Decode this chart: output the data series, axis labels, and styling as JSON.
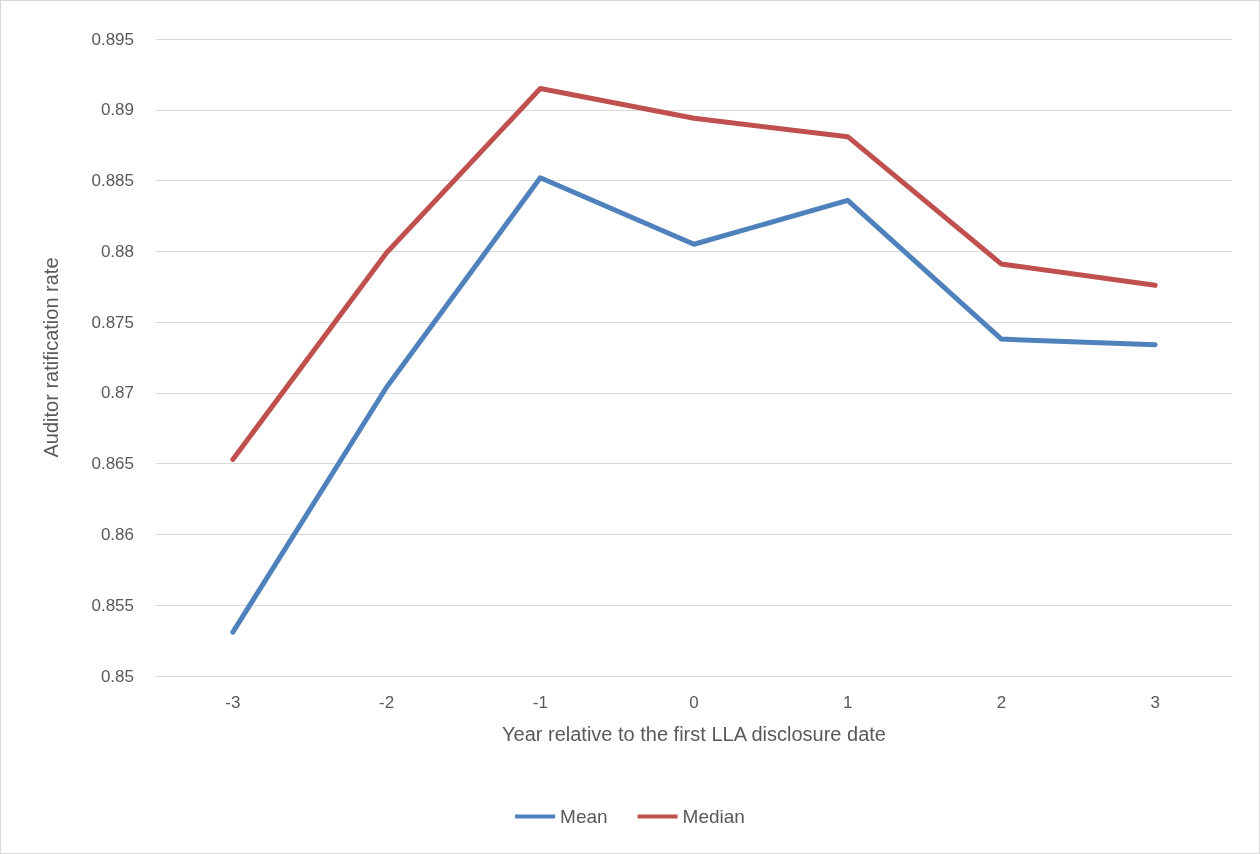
{
  "chart_data": {
    "type": "line",
    "xlabel": "Year relative to the first LLA disclosure date",
    "ylabel": "Auditor ratification rate",
    "categories": [
      "-3",
      "-2",
      "-1",
      "0",
      "1",
      "2",
      "3"
    ],
    "series": [
      {
        "name": "Mean",
        "color": "#4f81bd",
        "values": [
          0.8531,
          0.8704,
          0.8852,
          0.8805,
          0.8836,
          0.8738,
          0.8734
        ]
      },
      {
        "name": "Median",
        "color": "#c0504d",
        "values": [
          0.8653,
          0.8799,
          0.8915,
          0.8894,
          0.8881,
          0.8791,
          0.8776
        ]
      }
    ],
    "ylim": [
      0.85,
      0.895
    ],
    "yticks": [
      0.85,
      0.855,
      0.86,
      0.865,
      0.87,
      0.875,
      0.88,
      0.885,
      0.89,
      0.895
    ],
    "grid": "y",
    "legend": "bottom",
    "marker": "none",
    "line_style": "solid"
  }
}
